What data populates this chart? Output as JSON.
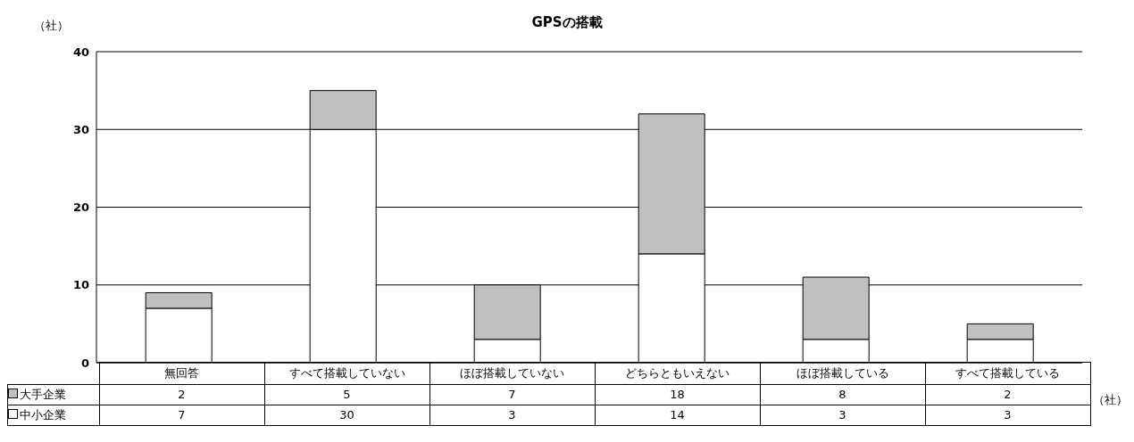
{
  "chart_data": {
    "type": "bar",
    "title": "GPSの搭載",
    "ylabel": "（社）",
    "categories": [
      "無回答",
      "すべて搭載していない",
      "ほぼ搭載していない",
      "どちらともいえない",
      "ほぼ搭載している",
      "すべて搭載している"
    ],
    "series": [
      {
        "name": "中小企業",
        "color": "#ffffff",
        "values": [
          7,
          30,
          3,
          14,
          3,
          3
        ]
      },
      {
        "name": "大手企業",
        "color": "#c0c0c0",
        "values": [
          2,
          5,
          7,
          18,
          8,
          2
        ]
      }
    ],
    "stacked": true,
    "ylim": [
      0,
      40
    ],
    "yticks": [
      0,
      10,
      20,
      30,
      40
    ],
    "grid": "y",
    "legend": "bottom",
    "data_labels": true,
    "annotations": [
      "（社）"
    ]
  }
}
